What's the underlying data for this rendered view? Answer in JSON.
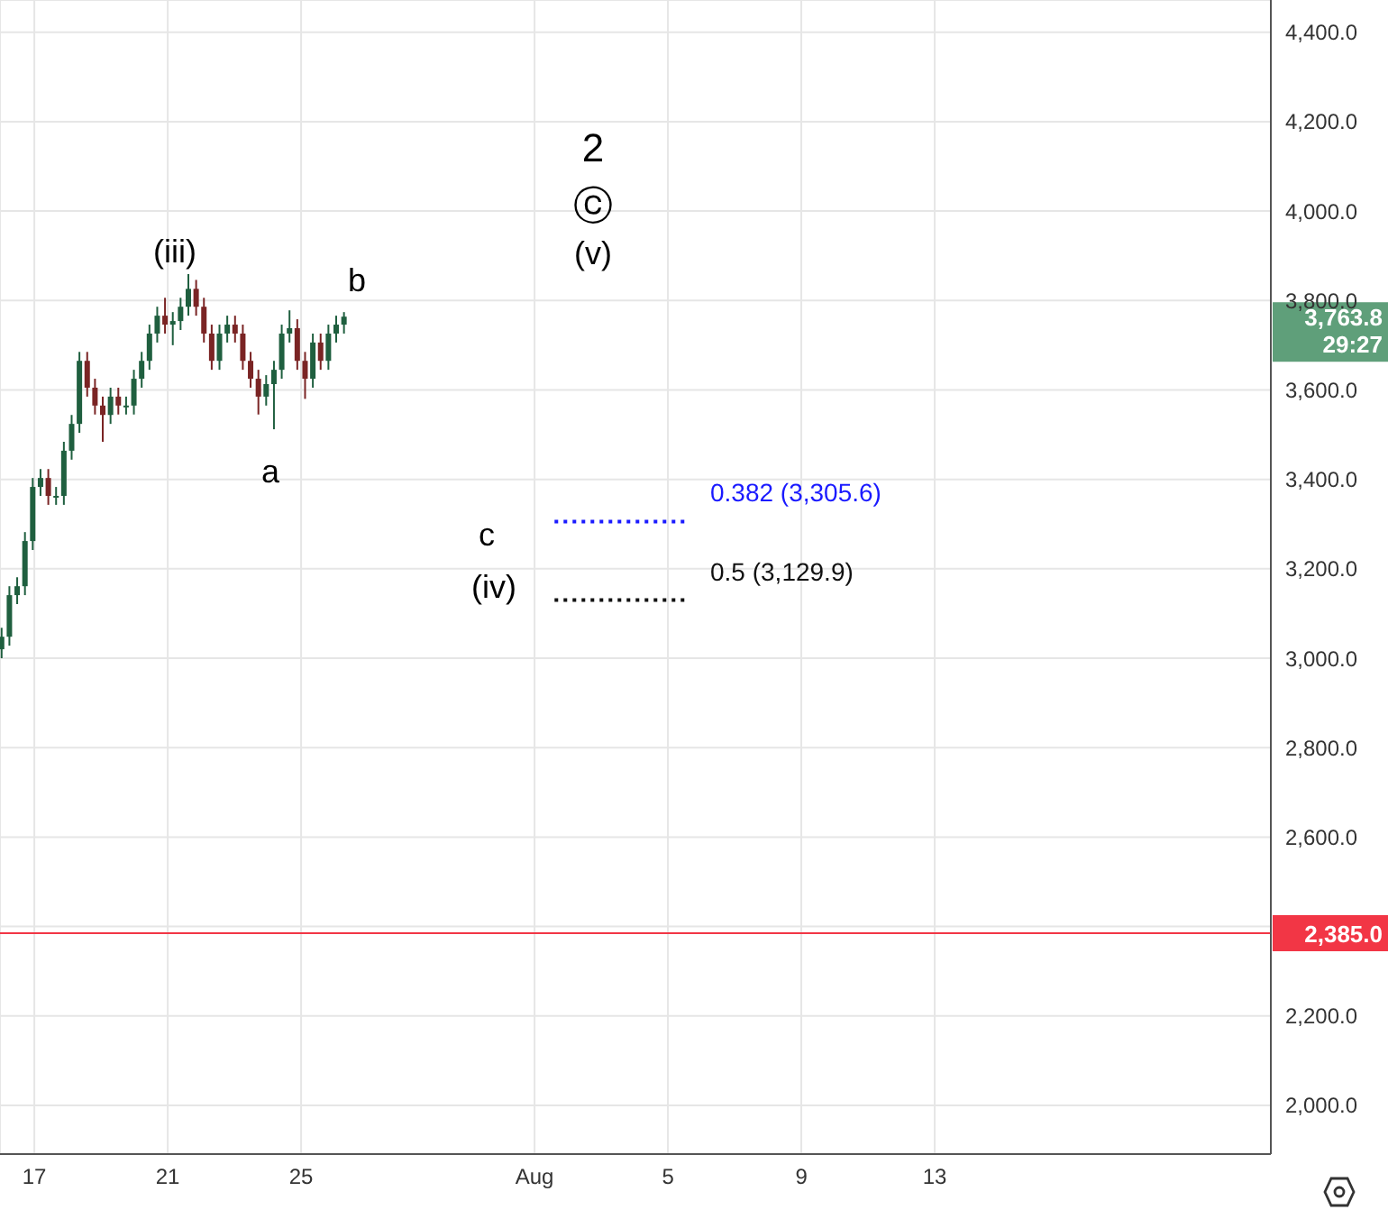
{
  "chart_data": {
    "type": "candlestick",
    "x": [
      "--07-16T00:00",
      "--07-16T05:36",
      "--07-16T11:12",
      "--07-16T16:48",
      "--07-16T22:24",
      "--07-17T04:00",
      "--07-17T09:36",
      "--07-17T15:12",
      "--07-17T20:48",
      "--07-18T02:24",
      "--07-18T08:00",
      "--07-18T13:36",
      "--07-18T19:12",
      "--07-19T00:48",
      "--07-19T06:24",
      "--07-19T12:00",
      "--07-19T17:36",
      "--07-19T23:12",
      "--07-20T04:48",
      "--07-20T10:24",
      "--07-20T16:00",
      "--07-20T21:36",
      "--07-21T03:12",
      "--07-21T08:48",
      "--07-21T14:24",
      "--07-21T20:00",
      "--07-22T01:36",
      "--07-22T07:12",
      "--07-22T12:48",
      "--07-22T18:24",
      "--07-23T00:00",
      "--07-23T05:36",
      "--07-23T11:12",
      "--07-23T16:48",
      "--07-23T22:24",
      "--07-24T04:00",
      "--07-24T09:36",
      "--07-24T15:12",
      "--07-24T20:48",
      "--07-25T02:24",
      "--07-25T08:00",
      "--07-25T13:36",
      "--07-25T19:12",
      "--07-26T00:48",
      "--07-26T06:24"
    ],
    "ohlc": [
      [
        3020,
        3068,
        3000,
        3048
      ],
      [
        3048,
        3161,
        3028,
        3141
      ],
      [
        3141,
        3181,
        3121,
        3161
      ],
      [
        3161,
        3282,
        3141,
        3262
      ],
      [
        3262,
        3403,
        3242,
        3383
      ],
      [
        3383,
        3423,
        3363,
        3403
      ],
      [
        3403,
        3423,
        3343,
        3363
      ],
      [
        3363,
        3383,
        3343,
        3363
      ],
      [
        3363,
        3484,
        3343,
        3464
      ],
      [
        3464,
        3544,
        3444,
        3524
      ],
      [
        3524,
        3685,
        3504,
        3665
      ],
      [
        3665,
        3685,
        3585,
        3605
      ],
      [
        3605,
        3625,
        3545,
        3565
      ],
      [
        3565,
        3585,
        3484,
        3544
      ],
      [
        3544,
        3605,
        3524,
        3585
      ],
      [
        3585,
        3605,
        3545,
        3565
      ],
      [
        3565,
        3585,
        3545,
        3565
      ],
      [
        3565,
        3645,
        3545,
        3625
      ],
      [
        3625,
        3685,
        3605,
        3665
      ],
      [
        3665,
        3746,
        3645,
        3726
      ],
      [
        3726,
        3786,
        3706,
        3766
      ],
      [
        3766,
        3806,
        3726,
        3746
      ],
      [
        3746,
        3774,
        3700,
        3754
      ],
      [
        3754,
        3806,
        3734,
        3786
      ],
      [
        3786,
        3859,
        3766,
        3826
      ],
      [
        3826,
        3846,
        3766,
        3786
      ],
      [
        3786,
        3806,
        3706,
        3726
      ],
      [
        3726,
        3746,
        3645,
        3665
      ],
      [
        3665,
        3746,
        3645,
        3726
      ],
      [
        3726,
        3766,
        3706,
        3746
      ],
      [
        3746,
        3766,
        3706,
        3726
      ],
      [
        3726,
        3746,
        3645,
        3665
      ],
      [
        3665,
        3685,
        3605,
        3625
      ],
      [
        3625,
        3645,
        3545,
        3585
      ],
      [
        3585,
        3633,
        3565,
        3613
      ],
      [
        3613,
        3665,
        3512,
        3645
      ],
      [
        3645,
        3746,
        3625,
        3726
      ],
      [
        3726,
        3778,
        3706,
        3738
      ],
      [
        3738,
        3758,
        3645,
        3665
      ],
      [
        3665,
        3685,
        3580,
        3625
      ],
      [
        3625,
        3726,
        3605,
        3706
      ],
      [
        3706,
        3726,
        3645,
        3665
      ],
      [
        3665,
        3746,
        3645,
        3726
      ],
      [
        3726,
        3766,
        3706,
        3746
      ],
      [
        3746,
        3774,
        3726,
        3763.8
      ]
    ],
    "colors": [
      "#1f5f3f",
      "#1f5f3f",
      "#1f5f3f",
      "#1f5f3f",
      "#1f5f3f",
      "#1f5f3f",
      "#7a2424",
      "#1f5f3f",
      "#1f5f3f",
      "#1f5f3f",
      "#1f5f3f",
      "#7a2424",
      "#7a2424",
      "#7a2424",
      "#1f5f3f",
      "#7a2424",
      "#1f5f3f",
      "#1f5f3f",
      "#1f5f3f",
      "#1f5f3f",
      "#1f5f3f",
      "#7a2424",
      "#1f5f3f",
      "#1f5f3f",
      "#1f5f3f",
      "#7a2424",
      "#7a2424",
      "#7a2424",
      "#1f5f3f",
      "#1f5f3f",
      "#7a2424",
      "#7a2424",
      "#7a2424",
      "#7a2424",
      "#1f5f3f",
      "#1f5f3f",
      "#1f5f3f",
      "#1f5f3f",
      "#7a2424",
      "#7a2424",
      "#1f5f3f",
      "#7a2424",
      "#1f5f3f",
      "#1f5f3f",
      "#1f5f3f"
    ],
    "series": [
      {
        "type": "line",
        "x": [
          "--08-01T14:24",
          "--08-05T14:24"
        ],
        "values": [
          3305.6,
          3305.6
        ],
        "color": "#1a1aff",
        "line_style": "dotted"
      },
      {
        "type": "line",
        "x": [
          "--08-01T14:24",
          "--08-05T14:24"
        ],
        "values": [
          3129.9,
          3129.9
        ],
        "color": "#111111",
        "line_style": "dotted"
      }
    ],
    "xlim": [
      "--07-15T23:17",
      "--08-23T01:55"
    ],
    "xticks": [
      {
        "value": "--07-17",
        "label": "17"
      },
      {
        "value": "--07-21",
        "label": "21"
      },
      {
        "value": "--07-25",
        "label": "25"
      },
      {
        "value": "--08-01",
        "label": "Aug"
      },
      {
        "value": "--08-05",
        "label": "5"
      },
      {
        "value": "--08-09",
        "label": "9"
      },
      {
        "value": "--08-13",
        "label": "13"
      }
    ],
    "ylim": [
      1891,
      4472
    ],
    "yticks": [
      {
        "value": 2000,
        "label": "2,000.0"
      },
      {
        "value": 2200,
        "label": "2,200.0"
      },
      {
        "value": 2400,
        "label": null
      },
      {
        "value": 2600,
        "label": "2,600.0"
      },
      {
        "value": 2800,
        "label": "2,800.0"
      },
      {
        "value": 3000,
        "label": "3,000.0"
      },
      {
        "value": 3200,
        "label": "3,200.0"
      },
      {
        "value": 3400,
        "label": "3,400.0"
      },
      {
        "value": 3600,
        "label": "3,600.0"
      },
      {
        "value": 3800,
        "label": "3,800.0"
      },
      {
        "value": 4000,
        "label": "4,000.0"
      },
      {
        "value": 4200,
        "label": "4,200.0"
      },
      {
        "value": 4400,
        "label": "4,400.0"
      }
    ],
    "grid": true,
    "ref_lines": [
      {
        "axis": "y",
        "value": 2385,
        "label": "2,385.0",
        "color": "#f23645"
      }
    ],
    "annotations": [
      "2",
      "ⓒ",
      "(v)",
      "(iii)",
      "b",
      "a",
      "c",
      "(iv)",
      "0.382 (3,305.6)",
      "0.5 (3,129.9)",
      "3,763.8",
      "29:27"
    ]
  }
}
